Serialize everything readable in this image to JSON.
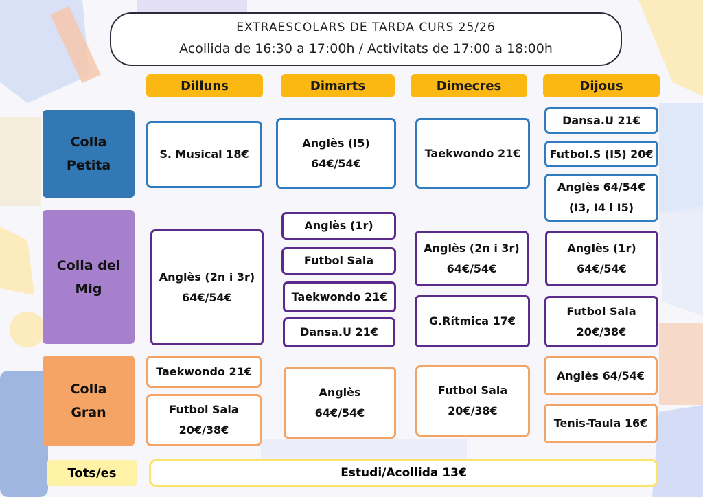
{
  "header": {
    "line1": "EXTRAESCOLARS DE TARDA CURS 25/26",
    "line2": "Acollida de 16:30 a 17:00h / Activitats de 17:00 a 18:00h"
  },
  "days": [
    "Dilluns",
    "Dimarts",
    "Dimecres",
    "Dijous"
  ],
  "groups": {
    "petita": "Colla\nPetita",
    "mig": "Colla del\nMig",
    "gran": "Colla\nGran"
  },
  "colors": {
    "petita": "#3178b5",
    "mig": "#a780cd",
    "gran": "#f5a466",
    "day_header": "#fbb712",
    "tots": "#fdf2a6"
  },
  "petita": {
    "dilluns": [
      "S. Musical 18€"
    ],
    "dimarts": [
      "Anglès (I5)",
      "64€/54€"
    ],
    "dimecres": [
      "Taekwondo 21€"
    ],
    "dijous_1": [
      "Dansa.U  21€"
    ],
    "dijous_2": [
      "Futbol.S (I5) 20€"
    ],
    "dijous_3": [
      "Anglès 64/54€",
      "(I3, I4 i I5)"
    ]
  },
  "mig": {
    "dilluns": [
      "Anglès (2n i 3r)",
      "64€/54€"
    ],
    "dimarts_1": [
      "Anglès (1r)"
    ],
    "dimarts_2": [
      "Futbol Sala"
    ],
    "dimarts_3": [
      "Taekwondo 21€"
    ],
    "dimarts_4": [
      "Dansa.U 21€"
    ],
    "dimecres_1": [
      "Anglès (2n i 3r)",
      "64€/54€"
    ],
    "dimecres_2": [
      "G.Rítmica 17€"
    ],
    "dijous_1": [
      "Anglès (1r)",
      "64€/54€"
    ],
    "dijous_2": [
      "Futbol Sala",
      "20€/38€"
    ]
  },
  "gran": {
    "dilluns_1": [
      "Taekwondo 21€"
    ],
    "dilluns_2": [
      "Futbol Sala",
      "20€/38€"
    ],
    "dimarts": [
      "Anglès",
      "64€/54€"
    ],
    "dimecres": [
      "Futbol Sala",
      "20€/38€"
    ],
    "dijous_1": [
      "Anglès 64/54€"
    ],
    "dijous_2": [
      "Tenis-Taula 16€"
    ]
  },
  "tots": {
    "label": "Tots/es",
    "activity": "Estudi/Acollida 13€"
  }
}
